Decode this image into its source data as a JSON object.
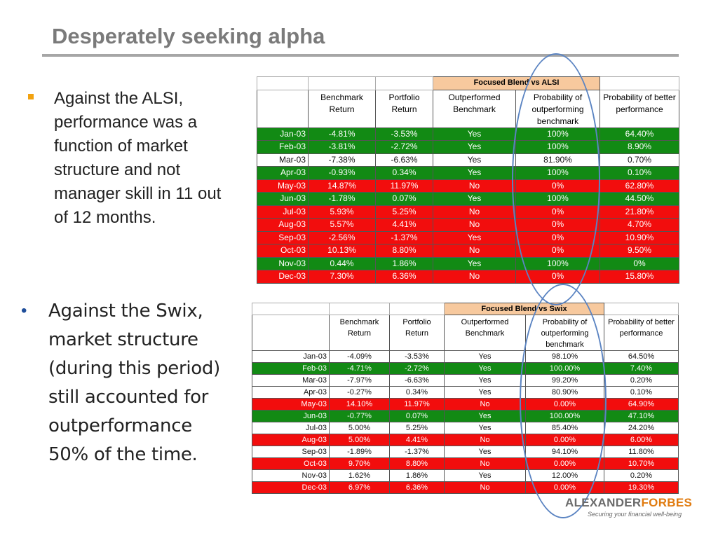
{
  "title": "Desperately seeking alpha",
  "bullets": [
    "Against the ALSI, performance was a function of market structure and not manager skill  in 11 out of 12 months.",
    "Against the Swix, market structure (during this period) still accounted for outperformance 50% of the time."
  ],
  "colors": {
    "green": "#128a14",
    "red": "#f20d0d",
    "header": "#f7c99e",
    "ellipse": "#5b84c2",
    "accent": "#e07b10"
  },
  "table1": {
    "group_header": "Focused Blend vs ALSI",
    "columns": [
      "",
      "Benchmark Return",
      "Portfolio Return",
      "Outperformed Benchmark",
      "Probability of outperforming benchmark",
      "Probability of better performance"
    ],
    "rows": [
      {
        "color": "g",
        "cells": [
          "Jan-03",
          "-4.81%",
          "-3.53%",
          "Yes",
          "100%",
          "64.40%"
        ]
      },
      {
        "color": "g",
        "cells": [
          "Feb-03",
          "-3.81%",
          "-2.72%",
          "Yes",
          "100%",
          "8.90%"
        ]
      },
      {
        "color": "w",
        "cells": [
          "Mar-03",
          "-7.38%",
          "-6.63%",
          "Yes",
          "81.90%",
          "0.70%"
        ]
      },
      {
        "color": "g",
        "cells": [
          "Apr-03",
          "-0.93%",
          "0.34%",
          "Yes",
          "100%",
          "0.10%"
        ]
      },
      {
        "color": "r",
        "cells": [
          "May-03",
          "14.87%",
          "11.97%",
          "No",
          "0%",
          "62.80%"
        ]
      },
      {
        "color": "g",
        "cells": [
          "Jun-03",
          "-1.78%",
          "0.07%",
          "Yes",
          "100%",
          "44.50%"
        ]
      },
      {
        "color": "r",
        "cells": [
          "Jul-03",
          "5.93%",
          "5.25%",
          "No",
          "0%",
          "21.80%"
        ]
      },
      {
        "color": "r",
        "cells": [
          "Aug-03",
          "5.57%",
          "4.41%",
          "No",
          "0%",
          "4.70%"
        ]
      },
      {
        "color": "r",
        "cells": [
          "Sep-03",
          "-2.56%",
          "-1.37%",
          "Yes",
          "0%",
          "10.90%"
        ]
      },
      {
        "color": "r",
        "cells": [
          "Oct-03",
          "10.13%",
          "8.80%",
          "No",
          "0%",
          "9.50%"
        ]
      },
      {
        "color": "g",
        "cells": [
          "Nov-03",
          "0.44%",
          "1.86%",
          "Yes",
          "100%",
          "0%"
        ]
      },
      {
        "color": "r",
        "cells": [
          "Dec-03",
          "7.30%",
          "6.36%",
          "No",
          "0%",
          "15.80%"
        ]
      }
    ]
  },
  "table2": {
    "group_header": "Focused Blend vs Swix",
    "columns": [
      "",
      "Benchmark Return",
      "Portfolio Return",
      "Outperformed Benchmark",
      "Probability of outperforming benchmark",
      "Probability of better performance"
    ],
    "rows": [
      {
        "color": "w",
        "cells": [
          "Jan-03",
          "-4.09%",
          "-3.53%",
          "Yes",
          "98.10%",
          "64.50%"
        ]
      },
      {
        "color": "g",
        "cells": [
          "Feb-03",
          "-4.71%",
          "-2.72%",
          "Yes",
          "100.00%",
          "7.40%"
        ]
      },
      {
        "color": "w",
        "cells": [
          "Mar-03",
          "-7.97%",
          "-6.63%",
          "Yes",
          "99.20%",
          "0.20%"
        ]
      },
      {
        "color": "w",
        "cells": [
          "Apr-03",
          "-0.27%",
          "0.34%",
          "Yes",
          "80.90%",
          "0.10%"
        ]
      },
      {
        "color": "r",
        "cells": [
          "May-03",
          "14.10%",
          "11.97%",
          "No",
          "0.00%",
          "64.90%"
        ]
      },
      {
        "color": "g",
        "cells": [
          "Jun-03",
          "-0.77%",
          "0.07%",
          "Yes",
          "100.00%",
          "47.10%"
        ]
      },
      {
        "color": "w",
        "cells": [
          "Jul-03",
          "5.00%",
          "5.25%",
          "Yes",
          "85.40%",
          "24.20%"
        ]
      },
      {
        "color": "r",
        "cells": [
          "Aug-03",
          "5.00%",
          "4.41%",
          "No",
          "0.00%",
          "6.00%"
        ]
      },
      {
        "color": "w",
        "cells": [
          "Sep-03",
          "-1.89%",
          "-1.37%",
          "Yes",
          "94.10%",
          "11.80%"
        ]
      },
      {
        "color": "r",
        "cells": [
          "Oct-03",
          "9.70%",
          "8.80%",
          "No",
          "0.00%",
          "10.70%"
        ]
      },
      {
        "color": "w",
        "cells": [
          "Nov-03",
          "1.62%",
          "1.86%",
          "Yes",
          "12.00%",
          "0.20%"
        ]
      },
      {
        "color": "r",
        "cells": [
          "Dec-03",
          "6.97%",
          "6.36%",
          "No",
          "0.00%",
          "19.30%"
        ]
      }
    ]
  },
  "logo": {
    "brand_a": "ALEXANDER",
    "brand_b": "FORBES",
    "tagline": "Securing your financial well-being"
  }
}
